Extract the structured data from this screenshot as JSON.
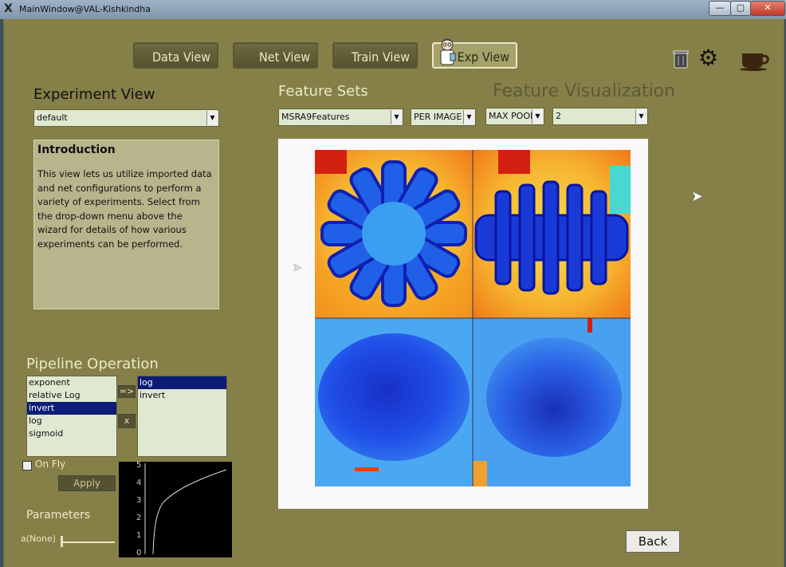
{
  "window": {
    "title": "MainWindow@VAL-Kishkindha",
    "app_icon": "X",
    "controls": {
      "minimize": "—",
      "maximize": "▢",
      "close": "✕"
    }
  },
  "nav": [
    {
      "label": "Data View"
    },
    {
      "label": "Net View"
    },
    {
      "label": "Train View"
    },
    {
      "label": "Exp View"
    }
  ],
  "top_icons": [
    "trash-icon",
    "gear-icon",
    "coffee-cup-icon"
  ],
  "experiment": {
    "title": "Experiment View",
    "selected": "default",
    "intro_title": "Introduction",
    "intro_text": "This view lets us utilize imported data and net configurations to perform a variety of experiments. Select from the drop-down menu above the wizard for details of how various experiments can be performed."
  },
  "feature_sets": {
    "title": "Feature Sets",
    "selected": "MSRA9Features",
    "mode": "PER IMAGE"
  },
  "feature_viz": {
    "title": "Feature Visualization",
    "pool": "MAX POOL",
    "index": "2"
  },
  "pipeline": {
    "title": "Pipeline Operation",
    "available": [
      "exponent",
      "relative Log",
      "invert",
      "log",
      "sigmoid"
    ],
    "selected_available": "invert",
    "applied": [
      "log",
      "invert"
    ],
    "selected_applied": "log",
    "add_label": "=>",
    "remove_label": "x",
    "on_fly_label": "On Fly",
    "apply_label": "Apply"
  },
  "parameters": {
    "title": "Parameters",
    "param_label": "a(None)",
    "slider_value": 0
  },
  "plot": {
    "y_ticks": [
      "0",
      "1",
      "2",
      "3",
      "4",
      "5"
    ]
  },
  "back_label": "Back",
  "colors": {
    "window_bg": "#858048",
    "panel_bg": "#b8b48c",
    "selection": "#0c1c77",
    "button_dark": "#55522f"
  }
}
